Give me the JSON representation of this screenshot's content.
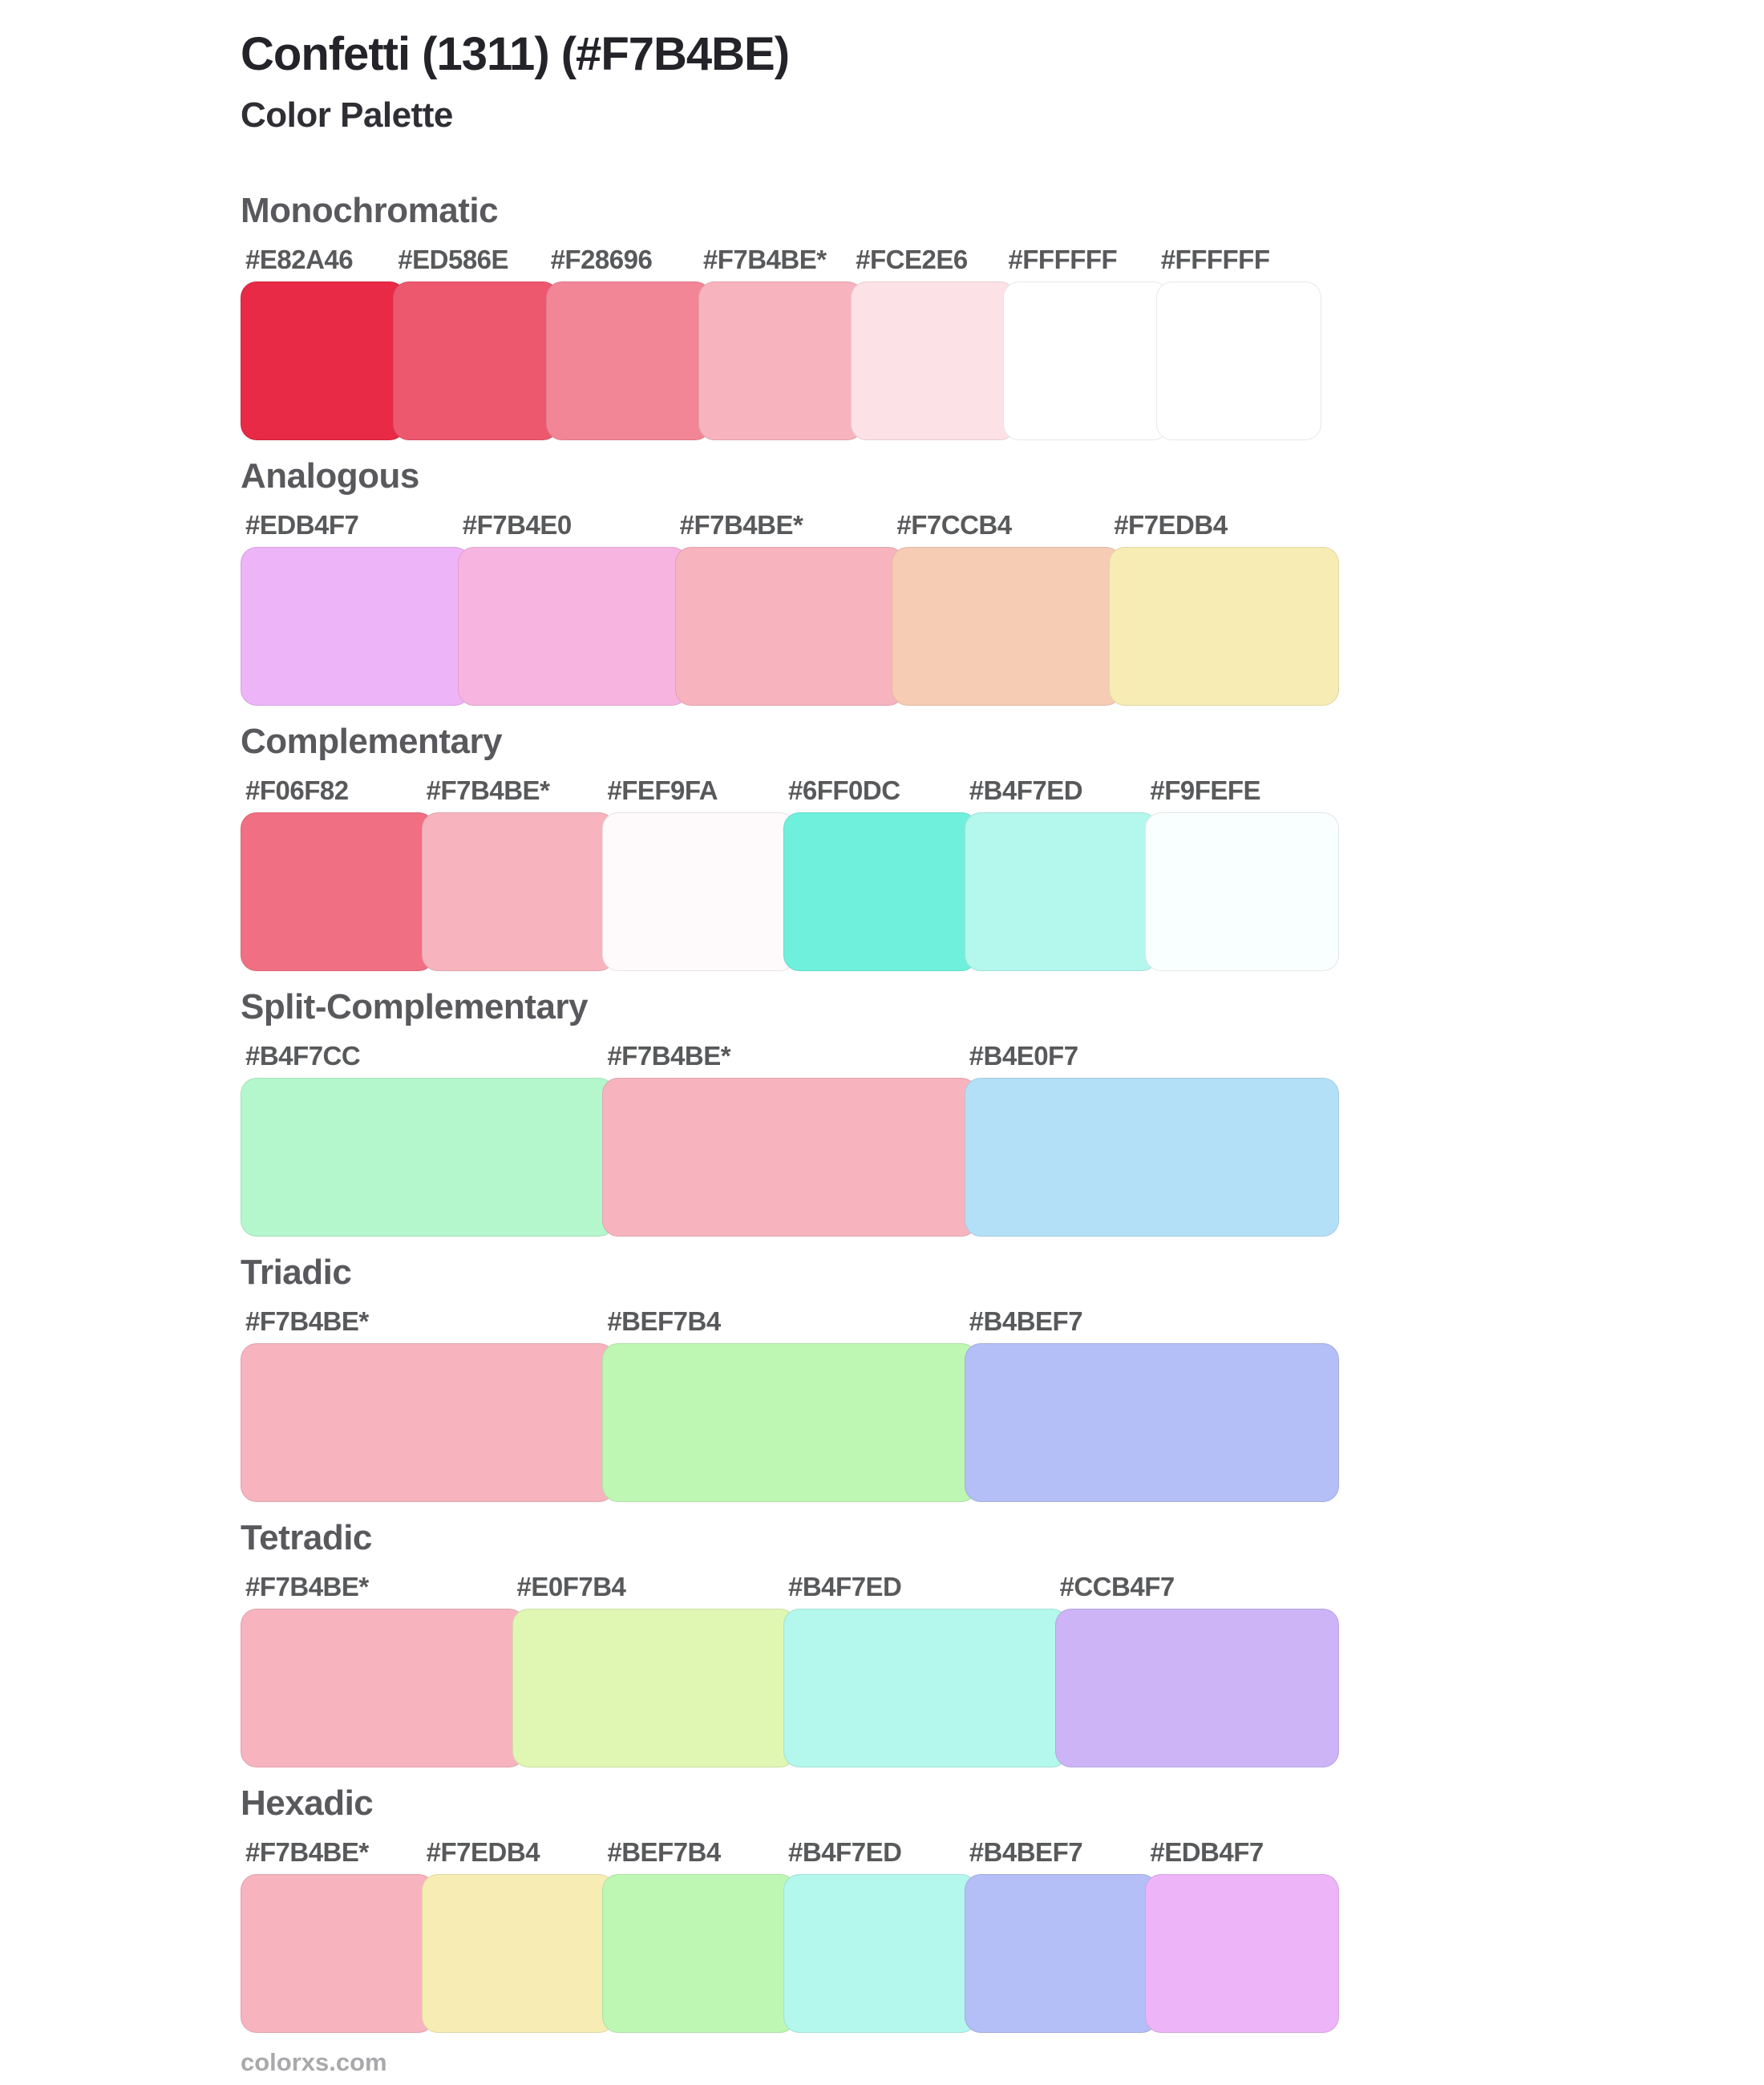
{
  "page": {
    "title": "Confetti (1311) (#F7B4BE)",
    "subtitle": "Color Palette",
    "footer": "colorxs.com"
  },
  "chart_data": {
    "type": "table",
    "title": "Confetti (1311) (#F7B4BE) Color Palette",
    "base_color": "#F7B4BE",
    "label_color": "#58595b",
    "heading_color": "#59595d",
    "sections": [
      {
        "name": "Monochromatic",
        "swatches": [
          {
            "label": "#E82A46",
            "hex": "#E82A46",
            "base": false
          },
          {
            "label": "#ED586E",
            "hex": "#ED586E",
            "base": false
          },
          {
            "label": "#F28696",
            "hex": "#F28696",
            "base": false
          },
          {
            "label": "#F7B4BE*",
            "hex": "#F7B4BE",
            "base": true
          },
          {
            "label": "#FCE2E6",
            "hex": "#FCE2E6",
            "base": false
          },
          {
            "label": "#FFFFFF",
            "hex": "#FFFFFF",
            "base": false
          },
          {
            "label": "#FFFFFF",
            "hex": "#FFFFFF",
            "base": false
          }
        ]
      },
      {
        "name": "Analogous",
        "swatches": [
          {
            "label": "#EDB4F7",
            "hex": "#EDB4F7",
            "base": false
          },
          {
            "label": "#F7B4E0",
            "hex": "#F7B4E0",
            "base": false
          },
          {
            "label": "#F7B4BE*",
            "hex": "#F7B4BE",
            "base": true
          },
          {
            "label": "#F7CCB4",
            "hex": "#F7CCB4",
            "base": false
          },
          {
            "label": "#F7EDB4",
            "hex": "#F7EDB4",
            "base": false
          }
        ]
      },
      {
        "name": "Complementary",
        "swatches": [
          {
            "label": "#F06F82",
            "hex": "#F06F82",
            "base": false
          },
          {
            "label": "#F7B4BE*",
            "hex": "#F7B4BE",
            "base": true
          },
          {
            "label": "#FEF9FA",
            "hex": "#FEF9FA",
            "base": false
          },
          {
            "label": "#6FF0DC",
            "hex": "#6FF0DC",
            "base": false
          },
          {
            "label": "#B4F7ED",
            "hex": "#B4F7ED",
            "base": false
          },
          {
            "label": "#F9FEFE",
            "hex": "#F9FEFE",
            "base": false
          }
        ]
      },
      {
        "name": "Split-Complementary",
        "swatches": [
          {
            "label": "#B4F7CC",
            "hex": "#B4F7CC",
            "base": false
          },
          {
            "label": "#F7B4BE*",
            "hex": "#F7B4BE",
            "base": true
          },
          {
            "label": "#B4E0F7",
            "hex": "#B4E0F7",
            "base": false
          }
        ]
      },
      {
        "name": "Triadic",
        "swatches": [
          {
            "label": "#F7B4BE*",
            "hex": "#F7B4BE",
            "base": true
          },
          {
            "label": "#BEF7B4",
            "hex": "#BEF7B4",
            "base": false
          },
          {
            "label": "#B4BEF7",
            "hex": "#B4BEF7",
            "base": false
          }
        ]
      },
      {
        "name": "Tetradic",
        "swatches": [
          {
            "label": "#F7B4BE*",
            "hex": "#F7B4BE",
            "base": true
          },
          {
            "label": "#E0F7B4",
            "hex": "#E0F7B4",
            "base": false
          },
          {
            "label": "#B4F7ED",
            "hex": "#B4F7ED",
            "base": false
          },
          {
            "label": "#CCB4F7",
            "hex": "#CCB4F7",
            "base": false
          }
        ]
      },
      {
        "name": "Hexadic",
        "swatches": [
          {
            "label": "#F7B4BE*",
            "hex": "#F7B4BE",
            "base": true
          },
          {
            "label": "#F7EDB4",
            "hex": "#F7EDB4",
            "base": false
          },
          {
            "label": "#BEF7B4",
            "hex": "#BEF7B4",
            "base": false
          },
          {
            "label": "#B4F7ED",
            "hex": "#B4F7ED",
            "base": false
          },
          {
            "label": "#B4BEF7",
            "hex": "#B4BEF7",
            "base": false
          },
          {
            "label": "#EDB4F7",
            "hex": "#EDB4F7",
            "base": false
          }
        ]
      }
    ]
  }
}
